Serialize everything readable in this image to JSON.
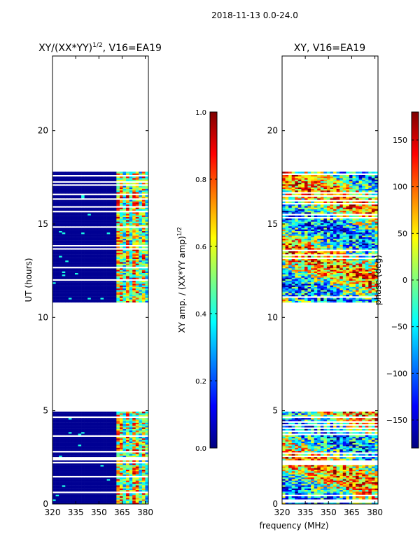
{
  "figure_title": "2018-11-13 0.0-24.0",
  "shared_xlabel": "frequency (MHz)",
  "colormap": [
    "#00007f",
    "#0000ff",
    "#007fff",
    "#00ffff",
    "#7fff7f",
    "#ffff00",
    "#ff7f00",
    "#ff0000",
    "#7f0000"
  ],
  "chart_data": [
    {
      "type": "heatmap",
      "title_main": "XY/(XX*YY)",
      "title_sup": "1/2",
      "title_tail": ", V16=EA19",
      "xlabel": "",
      "ylabel": "UT (hours)",
      "xlim": [
        320,
        382
      ],
      "ylim": [
        0,
        24
      ],
      "xticks": [
        320,
        335,
        350,
        365,
        380
      ],
      "yticks": [
        0,
        5,
        10,
        15,
        20
      ],
      "data_segments_hours": [
        [
          0,
          4.95
        ],
        [
          10.8,
          17.8
        ]
      ],
      "value_range": [
        0.0,
        1.0
      ],
      "colorbar": {
        "label_main": "XY amp. / (XX*YY amp)",
        "label_sup": "1/2",
        "ticks": [
          0.0,
          0.2,
          0.4,
          0.6,
          0.8,
          1.0
        ],
        "tick_labels": [
          "0.0",
          "0.2",
          "0.4",
          "0.6",
          "0.8",
          "1.0"
        ]
      }
    },
    {
      "type": "heatmap",
      "title_main": "XY, V16=EA19",
      "xlabel": "",
      "ylabel": "",
      "xlim": [
        320,
        382
      ],
      "ylim": [
        0,
        24
      ],
      "xticks": [
        320,
        335,
        350,
        365,
        380
      ],
      "yticks": [
        0,
        5,
        10,
        15,
        20
      ],
      "data_segments_hours": [
        [
          0,
          4.95
        ],
        [
          10.8,
          17.8
        ]
      ],
      "value_range": [
        -180,
        180
      ],
      "colorbar": {
        "label_main": "phase (deg)",
        "ticks": [
          -150,
          -100,
          -50,
          0,
          50,
          100,
          150
        ],
        "tick_labels": [
          "−150",
          "−100",
          "−50",
          "0",
          "50",
          "100",
          "150"
        ]
      }
    }
  ]
}
